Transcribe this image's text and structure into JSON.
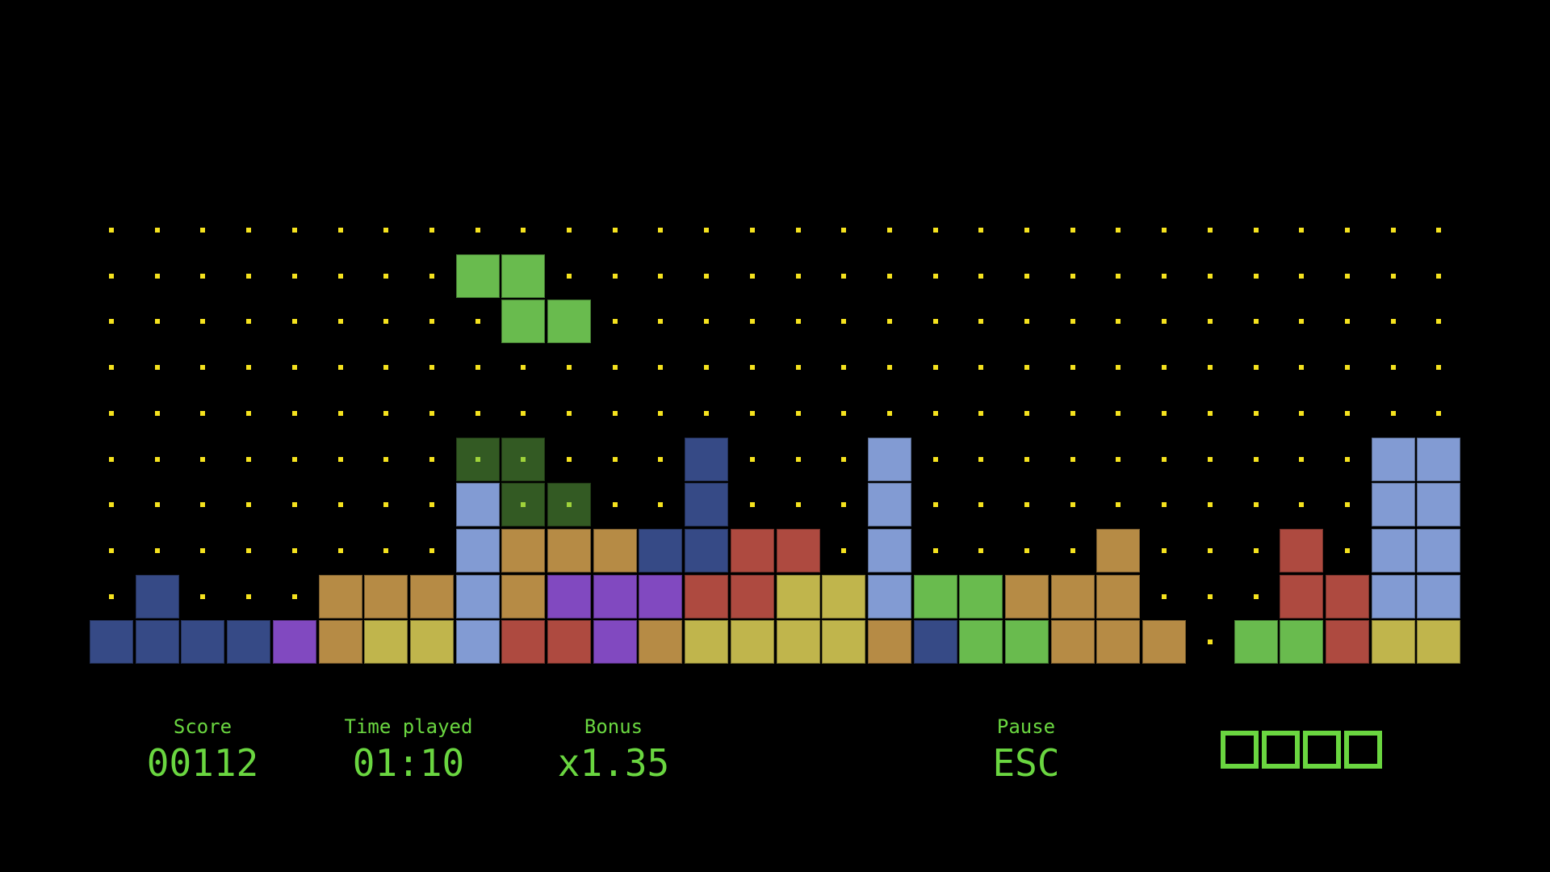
{
  "colors": {
    "N": "#364a86",
    "P": "#8149c0",
    "T": "#b68b45",
    "Y": "#c0b54c",
    "L": "#829bd3",
    "R": "#ae4a40",
    "G": "#69bb4e",
    "g": "#335a23",
    "dot": "#f5e21e",
    "hud": "#6ad640"
  },
  "board": {
    "columns": 30,
    "rows": [
      "..............................",
      "........GG....................",
      ".........GG...................",
      "..............................",
      "..............................",
      "........gg...N...L..........LL",
      "........Lgg..N...L..........LL",
      "........LTTTNNRR.L....T...R.LL",
      ".N...TTTLTPPPRRYYLGGTTT...RRLL",
      "NNNNPTYYLRRPTYYYYTNGGTTT.GGRYY"
    ],
    "legend": {
      "G": "active piece (S)",
      "g": "ghost piece",
      "N": "navy block",
      "P": "purple block",
      "T": "tan block",
      "Y": "yellow block",
      "L": "light blue block",
      "R": "red block",
      ".": "empty"
    }
  },
  "hud": {
    "score_label": "Score",
    "score_value": "00112",
    "time_label": "Time played",
    "time_value": "01:10",
    "bonus_label": "Bonus",
    "bonus_value": "x1.35",
    "pause_label": "Pause",
    "pause_value": "ESC",
    "next_slots": 4
  }
}
